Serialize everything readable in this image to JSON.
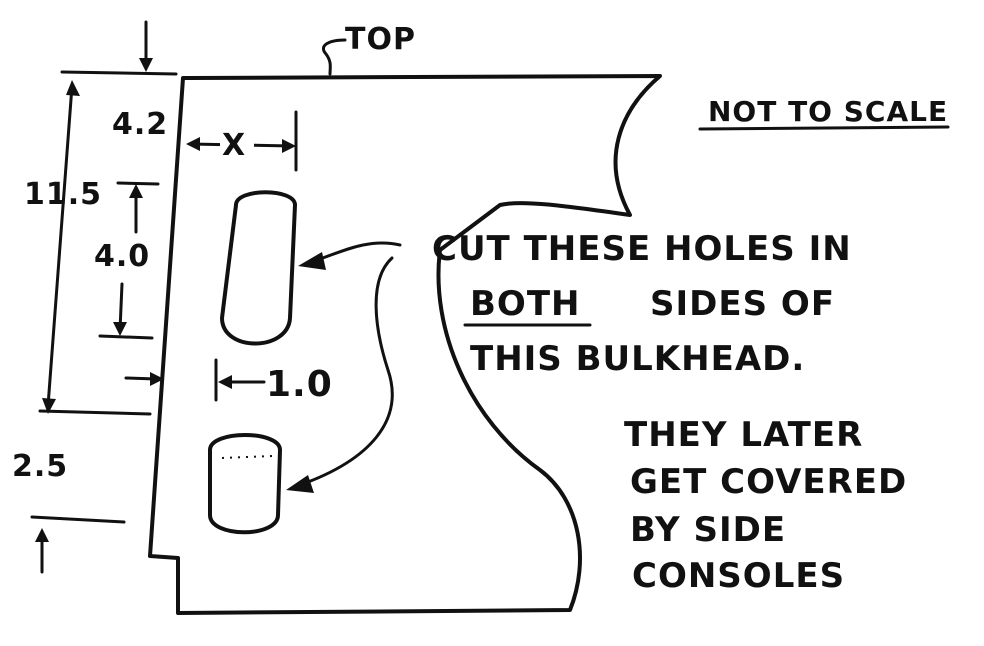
{
  "labels": {
    "top": "TOP",
    "not_to_scale": "NOT TO SCALE",
    "dim_top_offset": "4.2",
    "dim_overall_height": "11.5",
    "dim_hole_length": "4.0",
    "dim_hole_offset": "X",
    "dim_hole_width": "1.0",
    "dim_bottom_offset": "2.5"
  },
  "notes": {
    "line1": "CUT THESE  HOLES IN",
    "line2_emph": "BOTH",
    "line2_rest": "SIDES OF",
    "line3": "THIS  BULKHEAD.",
    "line4": "THEY LATER",
    "line5": "GET COVERED",
    "line6": "BY SIDE",
    "line7": "CONSOLES"
  },
  "colors": {
    "ink": "#111111",
    "paper": "#ffffff"
  }
}
